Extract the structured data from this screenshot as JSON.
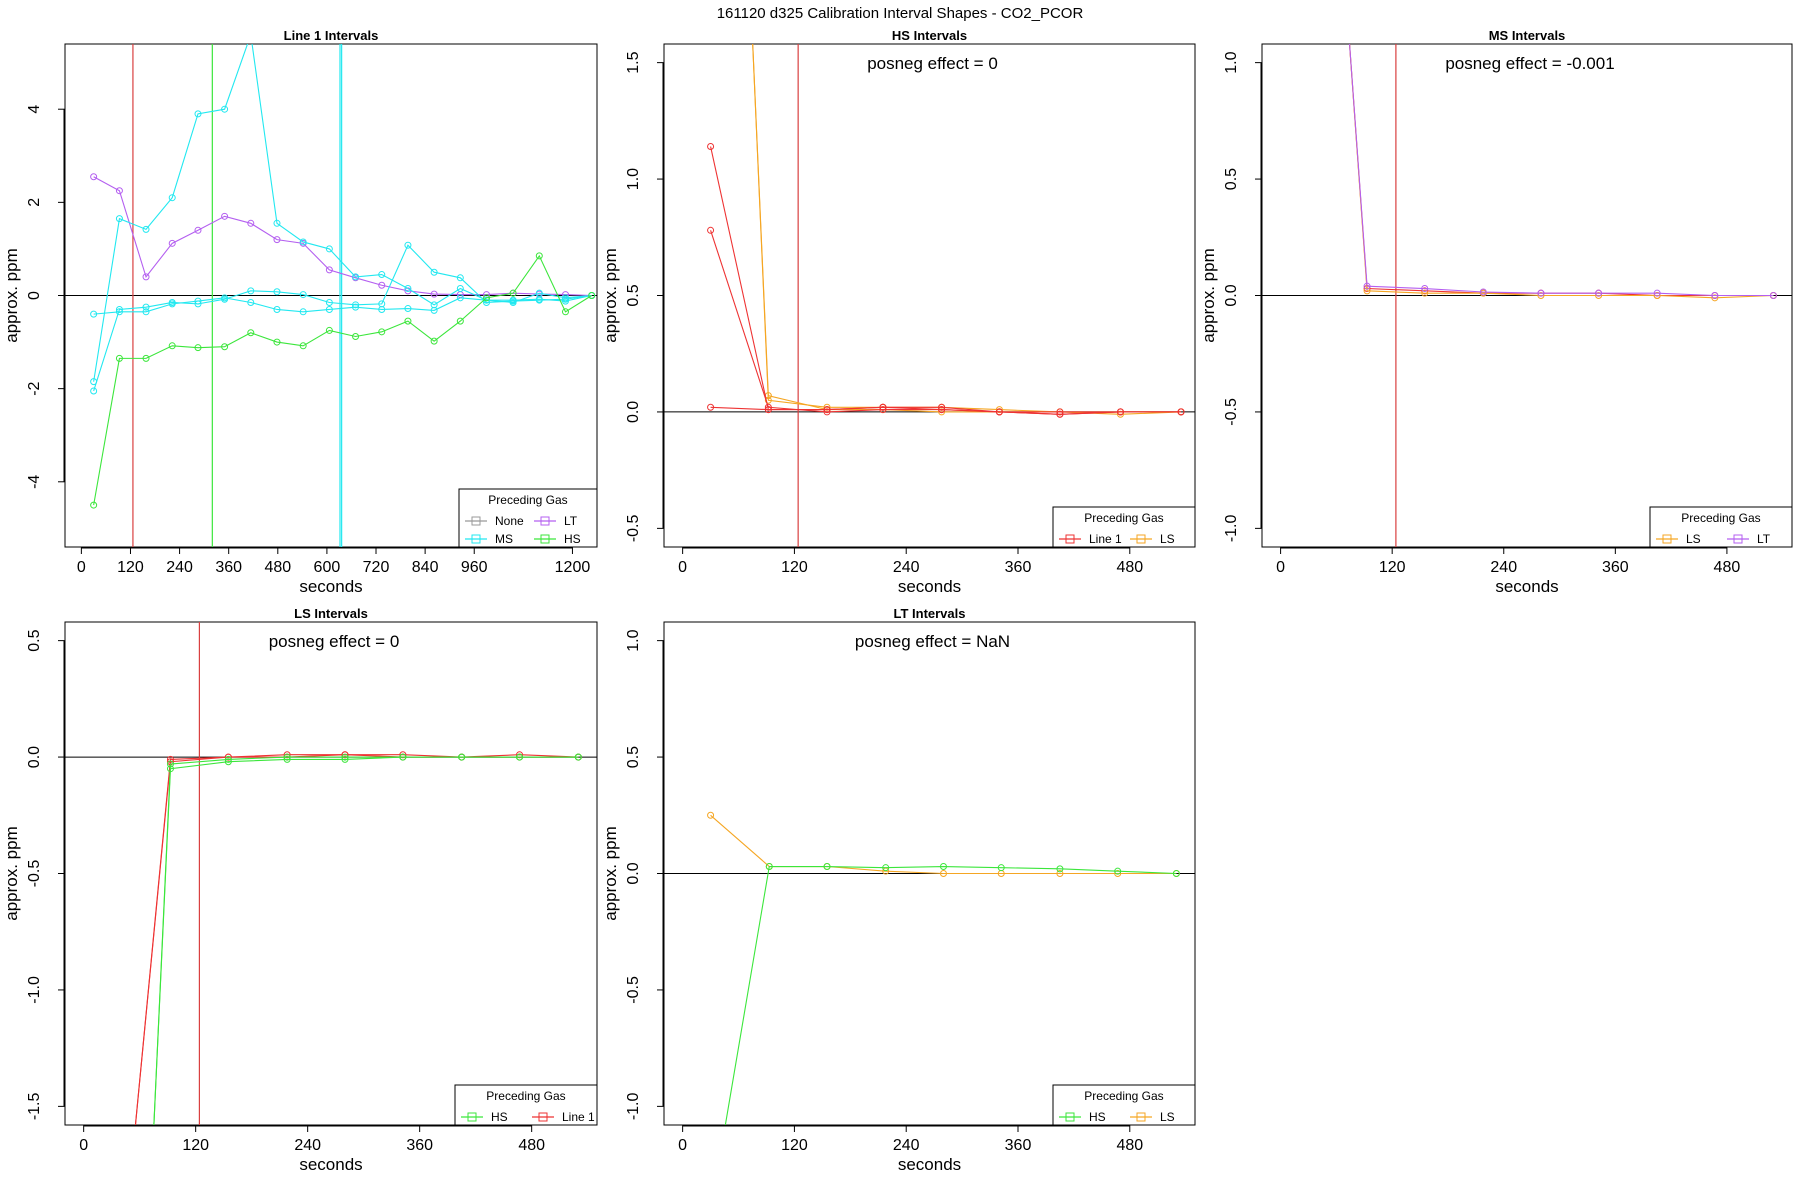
{
  "figure_title": "161120  d325   Calibration Interval Shapes - CO2_PCOR",
  "colors": {
    "None": "#999999",
    "MS": "#22e8f0",
    "LT": "#b45ff0",
    "HS": "#3be63b",
    "Line 1": "#ee3333",
    "LS": "#f5a623",
    "vline": "#d94040",
    "zero": "#000000"
  },
  "chart_data": [
    {
      "type": "line",
      "title": "Line 1 Intervals",
      "xlabel": "seconds",
      "ylabel": "approx. ppm",
      "xlim": [
        -40,
        1260
      ],
      "ylim": [
        -5.4,
        5.4
      ],
      "xticks": [
        0,
        120,
        240,
        360,
        480,
        600,
        720,
        840,
        960,
        1200
      ],
      "yticks": [
        -4,
        -2,
        0,
        2,
        4
      ],
      "annotation": "",
      "vlines": [
        {
          "x": 126,
          "color": "vline"
        },
        {
          "x": 320,
          "color": "HS"
        },
        {
          "x": 632,
          "color": "MS"
        },
        {
          "x": 636,
          "color": "MS"
        }
      ],
      "legend": {
        "title": "Preceding Gas",
        "entries": [
          "None",
          "LT",
          "MS",
          "HS"
        ],
        "cols": 2
      },
      "series": [
        {
          "group": "LT",
          "x": [
            30,
            93,
            158,
            222,
            285,
            350,
            414,
            478,
            542,
            606,
            670,
            734,
            798,
            862,
            926,
            990,
            1055,
            1119,
            1183,
            1247
          ],
          "y": [
            2.55,
            2.25,
            0.4,
            1.12,
            1.4,
            1.7,
            1.55,
            1.2,
            1.12,
            0.55,
            0.38,
            0.22,
            0.1,
            0.03,
            0.02,
            0.02,
            0.05,
            0.03,
            0.02,
            0.0
          ]
        },
        {
          "group": "MS",
          "x": [
            30,
            93,
            158,
            222,
            285,
            350,
            414,
            478,
            542,
            606,
            670,
            734,
            798,
            862,
            926,
            990,
            1055,
            1119,
            1183,
            1247
          ],
          "y": [
            -1.85,
            1.65,
            1.42,
            2.1,
            3.9,
            4.0,
            5.6,
            1.55,
            1.15,
            1.0,
            0.4,
            0.45,
            0.15,
            -0.2,
            0.15,
            -0.1,
            -0.15,
            0.05,
            -0.05,
            0.0
          ]
        },
        {
          "group": "MS",
          "x": [
            30,
            93,
            158,
            222,
            285,
            350,
            414,
            478,
            542,
            606,
            670,
            734,
            798,
            862,
            926,
            990,
            1055,
            1119,
            1183,
            1247
          ],
          "y": [
            -2.05,
            -0.3,
            -0.25,
            -0.15,
            -0.18,
            -0.08,
            0.1,
            0.08,
            0.02,
            -0.15,
            -0.2,
            -0.18,
            1.08,
            0.5,
            0.38,
            -0.15,
            -0.12,
            -0.1,
            -0.08,
            0.0
          ]
        },
        {
          "group": "MS",
          "x": [
            30,
            93,
            158,
            222,
            285,
            350,
            414,
            478,
            542,
            606,
            670,
            734,
            798,
            862,
            926,
            990,
            1055,
            1119,
            1183,
            1247
          ],
          "y": [
            -0.4,
            -0.35,
            -0.35,
            -0.18,
            -0.12,
            -0.05,
            -0.15,
            -0.3,
            -0.35,
            -0.3,
            -0.25,
            -0.3,
            -0.28,
            -0.32,
            -0.05,
            -0.1,
            -0.1,
            -0.08,
            -0.12,
            0.0
          ]
        },
        {
          "group": "HS",
          "x": [
            30,
            93,
            158,
            222,
            285,
            350,
            414,
            478,
            542,
            606,
            670,
            734,
            798,
            862,
            926,
            990,
            1055,
            1119,
            1183,
            1247
          ],
          "y": [
            -4.5,
            -1.35,
            -1.35,
            -1.08,
            -1.12,
            -1.1,
            -0.8,
            -1.0,
            -1.08,
            -0.75,
            -0.88,
            -0.78,
            -0.55,
            -0.98,
            -0.55,
            -0.05,
            0.05,
            0.85,
            -0.35,
            0.0
          ]
        }
      ]
    },
    {
      "type": "line",
      "title": "HS Intervals",
      "xlabel": "seconds",
      "ylabel": "approx. ppm",
      "xlim": [
        -20,
        550
      ],
      "ylim": [
        -0.58,
        1.58
      ],
      "xticks": [
        0,
        120,
        240,
        360,
        480
      ],
      "yticks": [
        -0.5,
        0.0,
        0.5,
        1.0,
        1.5
      ],
      "annotation": "posneg effect = 0",
      "vlines": [
        {
          "x": 124,
          "color": "vline"
        }
      ],
      "legend": {
        "title": "Preceding Gas",
        "entries": [
          "Line 1",
          "LS"
        ],
        "cols": 2
      },
      "series": [
        {
          "group": "LS",
          "x": [
            75,
            92,
            155,
            215,
            278,
            340,
            405,
            470,
            535
          ],
          "y": [
            1.6,
            0.05,
            0.02,
            0.02,
            0.02,
            0.01,
            0.0,
            0.0,
            0.0
          ]
        },
        {
          "group": "LS",
          "x": [
            75,
            92,
            155,
            215,
            278,
            340,
            405,
            470,
            535
          ],
          "y": [
            1.6,
            0.07,
            0.01,
            0.01,
            0.0,
            0.0,
            0.0,
            -0.01,
            0.0
          ]
        },
        {
          "group": "Line 1",
          "x": [
            30,
            92,
            155,
            215,
            278,
            340,
            405,
            470,
            535
          ],
          "y": [
            1.14,
            0.01,
            0.01,
            0.02,
            0.01,
            0.0,
            -0.01,
            0.0,
            0.0
          ]
        },
        {
          "group": "Line 1",
          "x": [
            30,
            92,
            155,
            215,
            278,
            340,
            405,
            470,
            535
          ],
          "y": [
            0.78,
            0.02,
            0.0,
            0.01,
            0.01,
            0.0,
            -0.01,
            0.0,
            0.0
          ]
        },
        {
          "group": "Line 1",
          "x": [
            30,
            92,
            155,
            215,
            278,
            340,
            405,
            470,
            535
          ],
          "y": [
            0.02,
            0.01,
            0.01,
            0.02,
            0.02,
            0.0,
            0.0,
            0.0,
            0.0
          ]
        }
      ]
    },
    {
      "type": "line",
      "title": "MS Intervals",
      "xlabel": "seconds",
      "ylabel": "approx. ppm",
      "xlim": [
        -20,
        550
      ],
      "ylim": [
        -1.08,
        1.08
      ],
      "xticks": [
        0,
        120,
        240,
        360,
        480
      ],
      "yticks": [
        -1.0,
        -0.5,
        0.0,
        0.5,
        1.0
      ],
      "annotation": "posneg effect = -0.001",
      "vlines": [
        {
          "x": 124,
          "color": "vline"
        }
      ],
      "legend": {
        "title": "Preceding Gas",
        "entries": [
          "LS",
          "LT"
        ],
        "cols": 2
      },
      "series": [
        {
          "group": "Line 1",
          "x": [
            72,
            93,
            155,
            218,
            280,
            342,
            405,
            467,
            530
          ],
          "y": [
            1.2,
            0.03,
            0.02,
            0.01,
            0.01,
            0.01,
            0.0,
            0.0,
            0.0
          ]
        },
        {
          "group": "LS",
          "x": [
            72,
            93,
            155,
            218,
            280,
            342,
            405,
            467,
            530
          ],
          "y": [
            1.2,
            0.02,
            0.01,
            0.01,
            0.0,
            0.0,
            0.0,
            -0.01,
            0.0
          ]
        },
        {
          "group": "LT",
          "x": [
            72,
            93,
            155,
            218,
            280,
            342,
            405,
            467,
            530
          ],
          "y": [
            1.2,
            0.04,
            0.03,
            0.015,
            0.01,
            0.01,
            0.01,
            0.0,
            0.0
          ]
        }
      ]
    },
    {
      "type": "line",
      "title": "LS Intervals",
      "xlabel": "seconds",
      "ylabel": "approx. ppm",
      "xlim": [
        -20,
        550
      ],
      "ylim": [
        -1.58,
        0.58
      ],
      "xticks": [
        0,
        120,
        240,
        360,
        480
      ],
      "yticks": [
        -1.5,
        -1.0,
        -0.5,
        0.0,
        0.5
      ],
      "annotation": "posneg effect = 0",
      "vlines": [
        {
          "x": 124,
          "color": "vline"
        }
      ],
      "legend": {
        "title": "Preceding Gas",
        "entries": [
          "HS",
          "Line 1"
        ],
        "cols": 2
      },
      "series": [
        {
          "group": "Line 1",
          "x": [
            55,
            93,
            155,
            218,
            280,
            342,
            405,
            467,
            530
          ],
          "y": [
            -1.6,
            -0.01,
            0.0,
            0.0,
            0.01,
            0.0,
            0.0,
            0.01,
            0.0
          ]
        },
        {
          "group": "Line 1",
          "x": [
            55,
            93,
            155,
            218,
            280,
            342,
            405,
            467,
            530
          ],
          "y": [
            -1.6,
            -0.02,
            0.0,
            0.01,
            0.01,
            0.01,
            0.0,
            0.0,
            0.0
          ]
        },
        {
          "group": "HS",
          "x": [
            75,
            93,
            155,
            218,
            280,
            342,
            405,
            467,
            530
          ],
          "y": [
            -1.6,
            -0.05,
            -0.02,
            -0.01,
            -0.01,
            0.0,
            0.0,
            0.0,
            0.0
          ]
        },
        {
          "group": "HS",
          "x": [
            75,
            93,
            155,
            218,
            280,
            342,
            405,
            467,
            530
          ],
          "y": [
            -1.6,
            -0.03,
            -0.01,
            0.0,
            0.0,
            0.0,
            0.0,
            0.0,
            0.0
          ]
        }
      ]
    },
    {
      "type": "line",
      "title": "LT Intervals",
      "xlabel": "seconds",
      "ylabel": "approx. ppm",
      "xlim": [
        -20,
        550
      ],
      "ylim": [
        -1.08,
        1.08
      ],
      "xticks": [
        0,
        120,
        240,
        360,
        480
      ],
      "yticks": [
        -1.0,
        -0.5,
        0.0,
        0.5,
        1.0
      ],
      "annotation": "posneg effect = NaN",
      "vlines": [],
      "legend": {
        "title": "Preceding Gas",
        "entries": [
          "HS",
          "LS"
        ],
        "cols": 2
      },
      "series": [
        {
          "group": "LS",
          "x": [
            30,
            93,
            155,
            218,
            280,
            342,
            405,
            467,
            530
          ],
          "y": [
            0.25,
            0.03,
            0.03,
            0.01,
            0.0,
            0.0,
            0.0,
            0.0,
            0.0
          ]
        },
        {
          "group": "HS",
          "x": [
            45,
            93,
            155,
            218,
            280,
            342,
            405,
            467,
            530
          ],
          "y": [
            -1.1,
            0.03,
            0.03,
            0.025,
            0.03,
            0.025,
            0.02,
            0.01,
            0.0
          ]
        }
      ]
    }
  ]
}
